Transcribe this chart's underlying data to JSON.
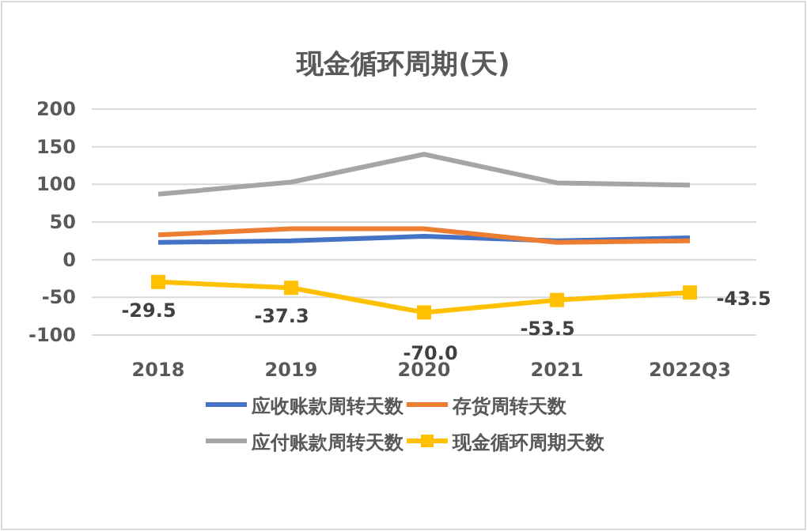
{
  "chart_data": {
    "type": "line",
    "title": "现金循环周期(天)",
    "categories": [
      "2018",
      "2019",
      "2020",
      "2021",
      "2022Q3"
    ],
    "series": [
      {
        "name": "应收账款周转天数",
        "color": "#4472c4",
        "values": [
          23,
          25,
          31,
          25,
          29
        ]
      },
      {
        "name": "存货周转天数",
        "color": "#ed7d31",
        "values": [
          33,
          41,
          41,
          23,
          25
        ]
      },
      {
        "name": "应付账款周转天数",
        "color": "#a5a5a5",
        "values": [
          87,
          103,
          140,
          102,
          99
        ]
      },
      {
        "name": "现金循环周期天数",
        "color": "#ffc000",
        "values": [
          -29.5,
          -37.3,
          -70.0,
          -53.5,
          -43.5
        ],
        "marker": "square",
        "value_labels": [
          "-29.5",
          "-37.3",
          "-70.0",
          "-53.5",
          "-43.5"
        ]
      }
    ],
    "ylim": [
      -100,
      200
    ],
    "yticks": [
      -100,
      -50,
      0,
      50,
      100,
      150,
      200
    ],
    "grid": "y",
    "legend": "bottom"
  }
}
